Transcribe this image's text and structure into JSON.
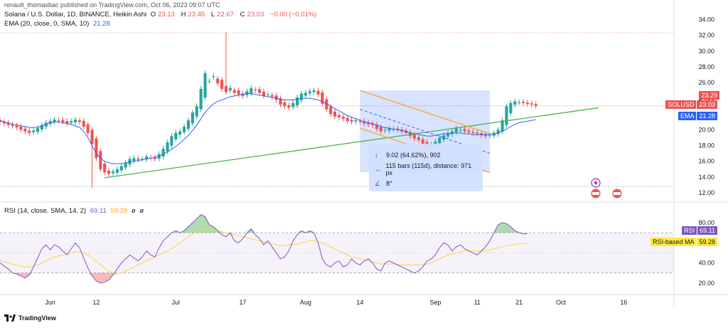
{
  "attribution": "renault_thomasbac published on TradingView.com, Oct 06, 2023 09:07 UTC",
  "legend": {
    "symbol": "Solana / U.S. Dollar, 1D, BINANCE, Heikin Ashi",
    "o_label": "O",
    "o": "23.13",
    "h_label": "H",
    "h": "23.45",
    "l_label": "L",
    "l": "22.67",
    "c_label": "C",
    "c": "23.03",
    "change": "−0.00 (−0.01%)",
    "ema_label": "EMA (20, close, 0, SMA, 10)",
    "ema_value": "21.28",
    "rsi_label": "RSI (14, close, SMA, 14, 2)",
    "rsi_value": "69.11",
    "rsi_ma_value": "59.28",
    "extra1": "ø",
    "extra2": "ø"
  },
  "badges": {
    "high_price": "23.29",
    "symbol_tag": "SOLUSD",
    "last_price": "23.03",
    "ema_tag": "EMA",
    "ema_price": "21.28",
    "rsi_tag": "RSI",
    "rsi_val": "69.11",
    "rsi_ma_tag": "RSI-based MA",
    "rsi_ma_val": "59.28"
  },
  "measure": {
    "line1": "9.02 (64.62%), 902",
    "line2": "115 bars (115d), distance: 971 px",
    "line3": "8°"
  },
  "footer": {
    "brand": "TradingView"
  },
  "colors": {
    "up": "#26a69a",
    "down": "#ef5350",
    "ema": "#2962ff",
    "rsi": "#7e57c2",
    "rsi_ma": "#fdd835",
    "trendline": "#4caf50",
    "channel": "#f9a825",
    "measure": "#2962ff"
  },
  "chart_data": {
    "type": "candlestick",
    "price_axis": {
      "ticks": [
        12,
        14,
        16,
        18,
        20,
        22,
        24,
        26,
        28,
        30,
        32,
        34
      ],
      "range": [
        11,
        34.5
      ]
    },
    "rsi_axis": {
      "ticks": [
        20,
        40,
        60,
        80
      ],
      "range": [
        10,
        92
      ],
      "bands": [
        30,
        70
      ]
    },
    "x_axis": {
      "ticks": [
        {
          "label": "Jun",
          "date": "2023-06-01"
        },
        {
          "label": "12",
          "date": "2023-06-12"
        },
        {
          "label": "Jul",
          "date": "2023-07-01"
        },
        {
          "label": "17",
          "date": "2023-07-17"
        },
        {
          "label": "Aug",
          "date": "2023-08-01"
        },
        {
          "label": "14",
          "date": "2023-08-14"
        },
        {
          "label": "Sep",
          "date": "2023-09-01"
        },
        {
          "label": "11",
          "date": "2023-09-11"
        },
        {
          "label": "21",
          "date": "2023-09-21"
        },
        {
          "label": "Oct",
          "date": "2023-10-01"
        },
        {
          "label": "16",
          "date": "2023-10-16"
        }
      ],
      "start": "2023-05-20",
      "end": "2023-10-28"
    },
    "candles": {
      "start_date": "2023-05-20",
      "close": [
        21.0,
        20.8,
        20.6,
        20.5,
        20.3,
        20.0,
        19.8,
        19.6,
        19.9,
        20.2,
        20.6,
        20.9,
        21.1,
        21.3,
        21.2,
        21.0,
        20.8,
        21.1,
        21.3,
        21.0,
        20.4,
        19.6,
        18.2,
        16.4,
        15.0,
        14.6,
        14.4,
        14.7,
        15.0,
        15.4,
        15.8,
        16.3,
        16.4,
        16.2,
        16.3,
        16.6,
        16.4,
        16.3,
        16.9,
        17.6,
        18.4,
        19.2,
        19.6,
        19.8,
        20.4,
        21.2,
        22.2,
        23.0,
        25.2,
        27.2,
        26.2,
        26.8,
        25.9,
        25.2,
        24.8,
        25.3,
        24.7,
        24.5,
        24.3,
        24.9,
        25.3,
        25.0,
        24.7,
        24.3,
        24.5,
        24.2,
        23.8,
        23.2,
        23.0,
        22.8,
        23.4,
        24.1,
        24.6,
        24.7,
        24.9,
        25.0,
        24.5,
        23.3,
        22.6,
        22.0,
        21.7,
        21.6,
        21.4,
        21.1,
        21.0,
        21.2,
        21.0,
        20.8,
        20.7,
        20.6,
        20.1,
        19.8,
        20.0,
        20.2,
        20.1,
        20.0,
        19.8,
        19.6,
        19.2,
        18.9,
        18.7,
        18.2,
        17.8,
        18.1,
        18.5,
        19.0,
        19.3,
        19.6,
        19.8,
        20.2,
        20.0,
        19.8,
        19.7,
        19.6,
        19.5,
        19.3,
        19.2,
        19.3,
        19.6,
        20.0,
        21.2,
        23.0,
        23.4,
        23.6,
        23.5,
        23.4,
        23.3,
        23.2,
        23.03
      ],
      "highs_note": "spike 2023-07-13 high 32.4; 2023-06-11 low 12.6"
    },
    "ema": [
      21.2,
      21.0,
      20.9,
      20.7,
      20.6,
      20.5,
      20.4,
      20.3,
      20.3,
      20.3,
      20.5,
      20.7,
      20.9,
      21.0,
      21.0,
      20.9,
      20.8,
      20.7,
      20.5,
      20.3,
      19.8,
      19.0,
      18.0,
      17.0,
      16.4,
      16.0,
      15.8,
      15.7,
      15.7,
      15.7,
      15.8,
      15.9,
      16.0,
      16.1,
      16.2,
      16.3,
      16.4,
      16.5,
      16.7,
      16.9,
      17.2,
      17.5,
      17.9,
      18.3,
      18.8,
      19.3,
      19.9,
      20.6,
      21.4,
      22.2,
      22.8,
      23.3,
      23.6,
      23.8,
      24.0,
      24.2,
      24.3,
      24.4,
      24.5,
      24.6,
      24.6,
      24.5,
      24.4,
      24.3,
      24.2,
      24.1,
      24.0,
      23.9,
      23.8,
      23.8,
      23.8,
      23.9,
      24.0,
      24.0,
      24.0,
      23.9,
      23.8,
      23.6,
      23.3,
      23.0,
      22.7,
      22.4,
      22.1,
      21.8,
      21.6,
      21.4,
      21.2,
      21.0,
      20.9,
      20.8,
      20.6,
      20.4,
      20.3,
      20.2,
      20.1,
      20.0,
      19.9,
      19.8,
      19.6,
      19.5,
      19.4,
      19.3,
      19.2,
      19.2,
      19.3,
      19.4,
      19.5,
      19.5,
      19.6,
      19.6,
      19.6,
      19.5,
      19.5,
      19.4,
      19.4,
      19.4,
      19.4,
      19.4,
      19.5,
      19.6,
      19.8,
      20.1,
      20.4,
      20.7,
      20.9,
      21.0,
      21.1,
      21.2,
      21.28
    ],
    "rsi": [
      40,
      37,
      34,
      30,
      29,
      27,
      25,
      28,
      36,
      45,
      54,
      58,
      53,
      58,
      56,
      52,
      48,
      54,
      60,
      55,
      45,
      35,
      27,
      22,
      20,
      21,
      23,
      28,
      34,
      40,
      44,
      48,
      45,
      42,
      46,
      52,
      48,
      46,
      55,
      62,
      66,
      70,
      72,
      70,
      72,
      76,
      80,
      84,
      88,
      86,
      78,
      76,
      72,
      68,
      66,
      70,
      62,
      60,
      64,
      70,
      74,
      68,
      64,
      58,
      62,
      56,
      50,
      44,
      46,
      52,
      62,
      68,
      72,
      70,
      72,
      70,
      60,
      44,
      38,
      36,
      40,
      42,
      36,
      38,
      44,
      40,
      38,
      42,
      44,
      40,
      34,
      32,
      40,
      42,
      40,
      38,
      36,
      34,
      32,
      30,
      32,
      36,
      42,
      44,
      48,
      55,
      60,
      58,
      52,
      56,
      58,
      54,
      52,
      50,
      48,
      52,
      56,
      62,
      70,
      78,
      80,
      79,
      76,
      72,
      70,
      69,
      69.11
    ],
    "rsi_ma": [
      42,
      41,
      40,
      39,
      38,
      37,
      36,
      36,
      37,
      38,
      40,
      42,
      44,
      46,
      47,
      48,
      49,
      50,
      51,
      51,
      50,
      48,
      45,
      42,
      38,
      35,
      32,
      30,
      29,
      30,
      32,
      34,
      36,
      38,
      40,
      42,
      44,
      46,
      48,
      50,
      52,
      54,
      57,
      60,
      63,
      66,
      69,
      71,
      73,
      74,
      74,
      73,
      72,
      71,
      70,
      69,
      68,
      67,
      66,
      65,
      64,
      63,
      62,
      61,
      60,
      59,
      58,
      57,
      57,
      58,
      58,
      59,
      60,
      61,
      62,
      62,
      61,
      60,
      58,
      56,
      54,
      52,
      50,
      48,
      46,
      45,
      44,
      43,
      42,
      41,
      40,
      39,
      39,
      39,
      39,
      38,
      38,
      38,
      38,
      38,
      38,
      38,
      39,
      40,
      42,
      44,
      46,
      48,
      49,
      50,
      51,
      52,
      52,
      52,
      52,
      52,
      52,
      53,
      54,
      55,
      56,
      57,
      58,
      58,
      59,
      59,
      59.28
    ],
    "drawings": {
      "trendline": {
        "from": {
          "date": "2023-06-14",
          "price": 13.9
        },
        "to": {
          "date": "2023-10-10",
          "price": 22.8
        }
      },
      "channel_upper": {
        "from": {
          "date": "2023-08-14",
          "price": 25.0
        },
        "to": {
          "date": "2023-09-14",
          "price": 19.5
        }
      },
      "channel_lower": {
        "from": {
          "date": "2023-08-14",
          "price": 20.2
        },
        "to": {
          "date": "2023-09-14",
          "price": 14.6
        }
      },
      "channel_mid": {
        "from": {
          "date": "2023-08-14",
          "price": 22.6
        },
        "to": {
          "date": "2023-09-14",
          "price": 17.0
        }
      },
      "measure_box": {
        "from": {
          "date": "2023-08-14",
          "price": 25.0
        },
        "to": {
          "date": "2023-09-14",
          "price": 14.6
        }
      },
      "dotted_level": 32.3,
      "dotted_level2": 12.8
    }
  }
}
